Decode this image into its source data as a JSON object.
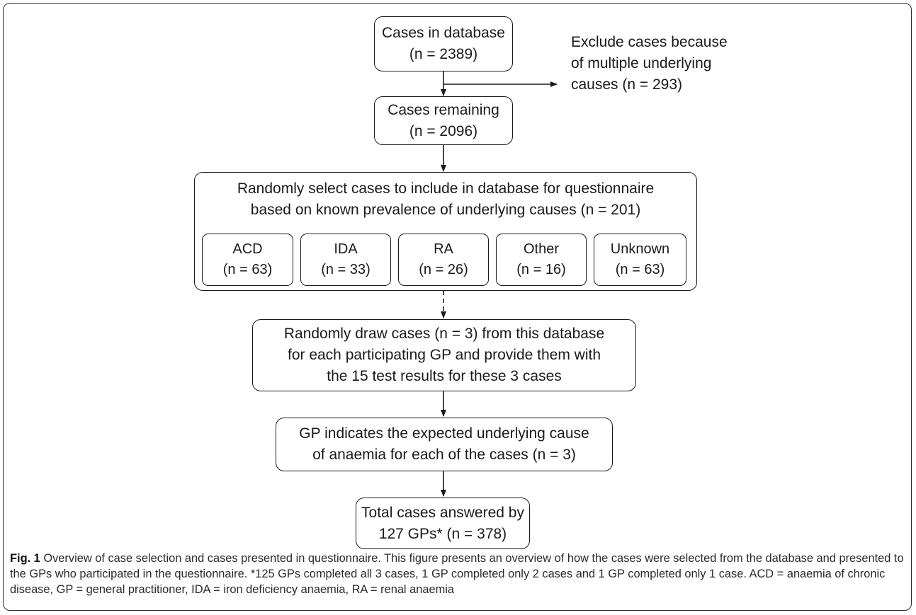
{
  "nodes": {
    "cases_db": {
      "line1": "Cases in database",
      "line2": "(n = 2389)"
    },
    "exclude": {
      "line1": "Exclude cases because",
      "line2": "of multiple underlying",
      "line3": "causes (n = 293)"
    },
    "remaining": {
      "line1": "Cases remaining",
      "line2": "(n = 2096)"
    },
    "random_select": {
      "line1": "Randomly select cases to include in  database for questionnaire",
      "line2": "based on known prevalence of underlying causes (n = 201)"
    },
    "categories": [
      {
        "label": "ACD",
        "count": "(n = 63)"
      },
      {
        "label": "IDA",
        "count": "(n = 33)"
      },
      {
        "label": "RA",
        "count": "(n = 26)"
      },
      {
        "label": "Other",
        "count": "(n = 16)"
      },
      {
        "label": "Unknown",
        "count": "(n = 63)"
      }
    ],
    "draw": {
      "line1": "Randomly draw cases (n = 3)  from this database",
      "line2": "for each participating GP and provide them with",
      "line3": "the 15 test results for these 3 cases"
    },
    "gp_indicates": {
      "line1": "GP indicates the expected underlying cause",
      "line2": "of anaemia for each of the cases (n = 3)"
    },
    "total": {
      "line1": "Total cases answered by",
      "line2": "127 GPs* (n = 378)"
    }
  },
  "caption": {
    "label": "Fig. 1",
    "text": " Overview of case selection and cases presented in questionnaire. This figure presents an overview of how the cases were selected from the database and presented to the GPs who participated in the questionnaire. *125 GPs completed all 3 cases, 1 GP completed only 2 cases and 1 GP completed only 1 case. ACD = anaemia of chronic disease, GP = general practitioner, IDA = iron deficiency anaemia, RA = renal anaemia"
  }
}
